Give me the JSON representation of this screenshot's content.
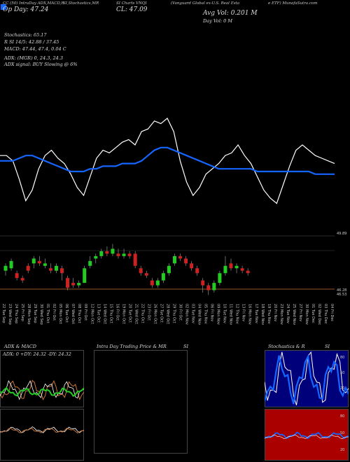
{
  "header": {
    "row1": [
      "CC (50) IntraDay ADX,MACD,R",
      "SI,Stochastics,MR",
      "SI Charts VNQI",
      "(Vanguard Global ex-U.S. Real Esta",
      "e ETF) MunafaSutra.com"
    ],
    "big1": "Op Day: 47.24",
    "big2": "CL: 47.09",
    "big3": "Avg Vol: 0.201 M",
    "big4": "Day Vol: 0 M"
  },
  "indicators": {
    "stochastics": "Stochastics: 65.17",
    "rsi": "R       SI 14/5: 42.88 / 37.45",
    "macd": "MACD: 47.44,  47.4,  0.04  C",
    "adx": "ADX:                    (MGR) 0,  24.3,  24.3",
    "adx_signal": "ADX  signal:                      BUY Slowing @ 6%"
  },
  "price_levels": {
    "top": "49.89",
    "mid": "46.28",
    "low": "46.53"
  },
  "dates": [
    "22 Tue Sep",
    "23 Wed Sep",
    "24 Thu Sep",
    "25 Fri Sep",
    "28 Mon Sep",
    "29 Tue Sep",
    "30 Wed Sep",
    "01 Thu Oct",
    "02 Fri Oct",
    "05 Mon Oct",
    "06 Tue Oct",
    "07 Wed Oct",
    "08 Thu Oct",
    "09 Fri Oct",
    "12 Mon Oct",
    "13 Tue Oct",
    "14 Wed Oct",
    "15 Thu Oct",
    "16 Fri Oct",
    "19 Mon Oct",
    "20 Tue Oct",
    "21 Wed Oct",
    "22 Thu Oct",
    "23 Fri Oct",
    "26 Mon Oct",
    "27 Tue Oct",
    "28 Wed Oct",
    "29 Thu Oct",
    "30 Fri Oct",
    "02 Mon Nov",
    "03 Tue Nov",
    "04 Wed Nov",
    "05 Thu Nov",
    "06 Fri Nov",
    "09 Mon Nov",
    "10 Tue Nov",
    "11 Wed Nov",
    "12 Thu Nov",
    "13 Fri Nov",
    "16 Mon Nov",
    "17 Tue Nov",
    "18 Wed Nov",
    "19 Thu Nov",
    "20 Fri Nov",
    "23 Mon Nov",
    "24 Tue Nov",
    "25 Wed Nov",
    "27 Fri Nov",
    "30 Mon Nov",
    "01 Tue Dec",
    "02 Wed Dec",
    "03 Thu Dec",
    "04 Fri Dec"
  ],
  "panels": {
    "adx_title": "ADX  & MACD",
    "adx_values": "ADX: 0   +DY: 24.32  -DY: 24.32",
    "intraday_title": "Intra  Day Trading Price  & MR",
    "intraday_si": "SI",
    "stoch_title": "Stochastics & R",
    "stoch_si": "SI"
  },
  "stoch_axis": [
    "80",
    "50",
    "20"
  ],
  "rsi_axis": [
    "80",
    "50",
    "20"
  ],
  "colors": {
    "blue": "#1565ff",
    "green": "#22cc22",
    "red": "#cc2222",
    "orange": "#c8733a",
    "navy": "#00007a",
    "darkred": "#aa0000"
  },
  "chart_data": {
    "type": "line",
    "series": [
      {
        "values": [
          62,
          62,
          58,
          44,
          28,
          36,
          52,
          62,
          66,
          60,
          56,
          48,
          38,
          32,
          46,
          60,
          66,
          64,
          68,
          72,
          74,
          70,
          80,
          82,
          88,
          86,
          90,
          80,
          58,
          42,
          32,
          38,
          48,
          52,
          56,
          62,
          64,
          70,
          62,
          56,
          46,
          36,
          30,
          26,
          40,
          54,
          66,
          70,
          66,
          62,
          60,
          58,
          56
        ]
      },
      {
        "values": [
          58,
          58,
          58,
          60,
          62,
          62,
          60,
          58,
          56,
          54,
          52,
          50,
          50,
          50,
          52,
          52,
          54,
          54,
          54,
          56,
          56,
          56,
          58,
          62,
          66,
          68,
          68,
          66,
          64,
          62,
          60,
          58,
          56,
          54,
          52,
          52,
          52,
          52,
          52,
          52,
          50,
          50,
          50,
          50,
          50,
          50,
          50,
          50,
          50,
          48,
          48,
          48,
          48
        ]
      }
    ],
    "candles": [
      {
        "o": 47.3,
        "c": 47.5,
        "h": 47.6,
        "l": 47.1
      },
      {
        "o": 47.4,
        "c": 47.7,
        "h": 47.8,
        "l": 47.3
      },
      {
        "o": 47.2,
        "c": 47.0,
        "h": 47.3,
        "l": 46.9
      },
      {
        "o": 47.0,
        "c": 46.9,
        "h": 47.1,
        "l": 46.8
      },
      {
        "o": 47.5,
        "c": 47.3,
        "h": 47.6,
        "l": 47.2
      },
      {
        "o": 47.6,
        "c": 47.8,
        "h": 47.9,
        "l": 47.4
      },
      {
        "o": 47.7,
        "c": 47.6,
        "h": 47.9,
        "l": 47.5
      },
      {
        "o": 47.5,
        "c": 47.6,
        "h": 47.8,
        "l": 47.4
      },
      {
        "o": 47.4,
        "c": 47.3,
        "h": 47.6,
        "l": 47.2
      },
      {
        "o": 47.3,
        "c": 47.5,
        "h": 47.6,
        "l": 47.2
      },
      {
        "o": 47.4,
        "c": 47.2,
        "h": 47.5,
        "l": 46.9
      },
      {
        "o": 47.0,
        "c": 46.6,
        "h": 47.1,
        "l": 46.5
      },
      {
        "o": 46.8,
        "c": 46.7,
        "h": 47.0,
        "l": 46.6
      },
      {
        "o": 46.7,
        "c": 46.8,
        "h": 46.9,
        "l": 46.6
      },
      {
        "o": 46.8,
        "c": 47.4,
        "h": 47.5,
        "l": 46.8
      },
      {
        "o": 47.5,
        "c": 47.7,
        "h": 47.9,
        "l": 47.4
      },
      {
        "o": 47.8,
        "c": 47.9,
        "h": 48.0,
        "l": 47.6
      },
      {
        "o": 47.9,
        "c": 48.1,
        "h": 48.2,
        "l": 47.8
      },
      {
        "o": 48.1,
        "c": 48.0,
        "h": 48.3,
        "l": 47.9
      },
      {
        "o": 48.0,
        "c": 48.2,
        "h": 48.4,
        "l": 47.9
      },
      {
        "o": 48.0,
        "c": 47.9,
        "h": 48.2,
        "l": 47.8
      },
      {
        "o": 47.9,
        "c": 48.0,
        "h": 48.2,
        "l": 47.8
      },
      {
        "o": 48.0,
        "c": 47.9,
        "h": 48.1,
        "l": 47.8
      },
      {
        "o": 48.0,
        "c": 47.5,
        "h": 48.1,
        "l": 47.4
      },
      {
        "o": 47.4,
        "c": 47.2,
        "h": 47.5,
        "l": 47.1
      },
      {
        "o": 47.2,
        "c": 47.1,
        "h": 47.3,
        "l": 47.0
      },
      {
        "o": 46.9,
        "c": 46.7,
        "h": 47.0,
        "l": 46.6
      },
      {
        "o": 46.7,
        "c": 46.9,
        "h": 47.0,
        "l": 46.6
      },
      {
        "o": 46.9,
        "c": 47.2,
        "h": 47.3,
        "l": 46.8
      },
      {
        "o": 47.2,
        "c": 47.5,
        "h": 47.6,
        "l": 47.1
      },
      {
        "o": 47.6,
        "c": 47.9,
        "h": 48.0,
        "l": 47.5
      },
      {
        "o": 47.9,
        "c": 47.8,
        "h": 48.0,
        "l": 47.7
      },
      {
        "o": 47.8,
        "c": 47.6,
        "h": 47.9,
        "l": 47.5
      },
      {
        "o": 47.6,
        "c": 47.4,
        "h": 47.7,
        "l": 47.3
      },
      {
        "o": 47.4,
        "c": 47.2,
        "h": 47.5,
        "l": 47.1
      },
      {
        "o": 46.9,
        "c": 46.7,
        "h": 47.0,
        "l": 46.4
      },
      {
        "o": 46.7,
        "c": 46.5,
        "h": 46.8,
        "l": 46.3
      },
      {
        "o": 46.5,
        "c": 46.8,
        "h": 46.9,
        "l": 46.4
      },
      {
        "o": 46.8,
        "c": 47.2,
        "h": 47.3,
        "l": 46.7
      },
      {
        "o": 47.2,
        "c": 47.5,
        "h": 47.9,
        "l": 47.1
      },
      {
        "o": 47.6,
        "c": 47.4,
        "h": 47.8,
        "l": 47.3
      },
      {
        "o": 47.4,
        "c": 47.5,
        "h": 47.6,
        "l": 47.2
      },
      {
        "o": 47.4,
        "c": 47.3,
        "h": 47.5,
        "l": 47.2
      },
      {
        "o": 47.3,
        "c": 47.2,
        "h": 47.4,
        "l": 47.1
      }
    ]
  }
}
